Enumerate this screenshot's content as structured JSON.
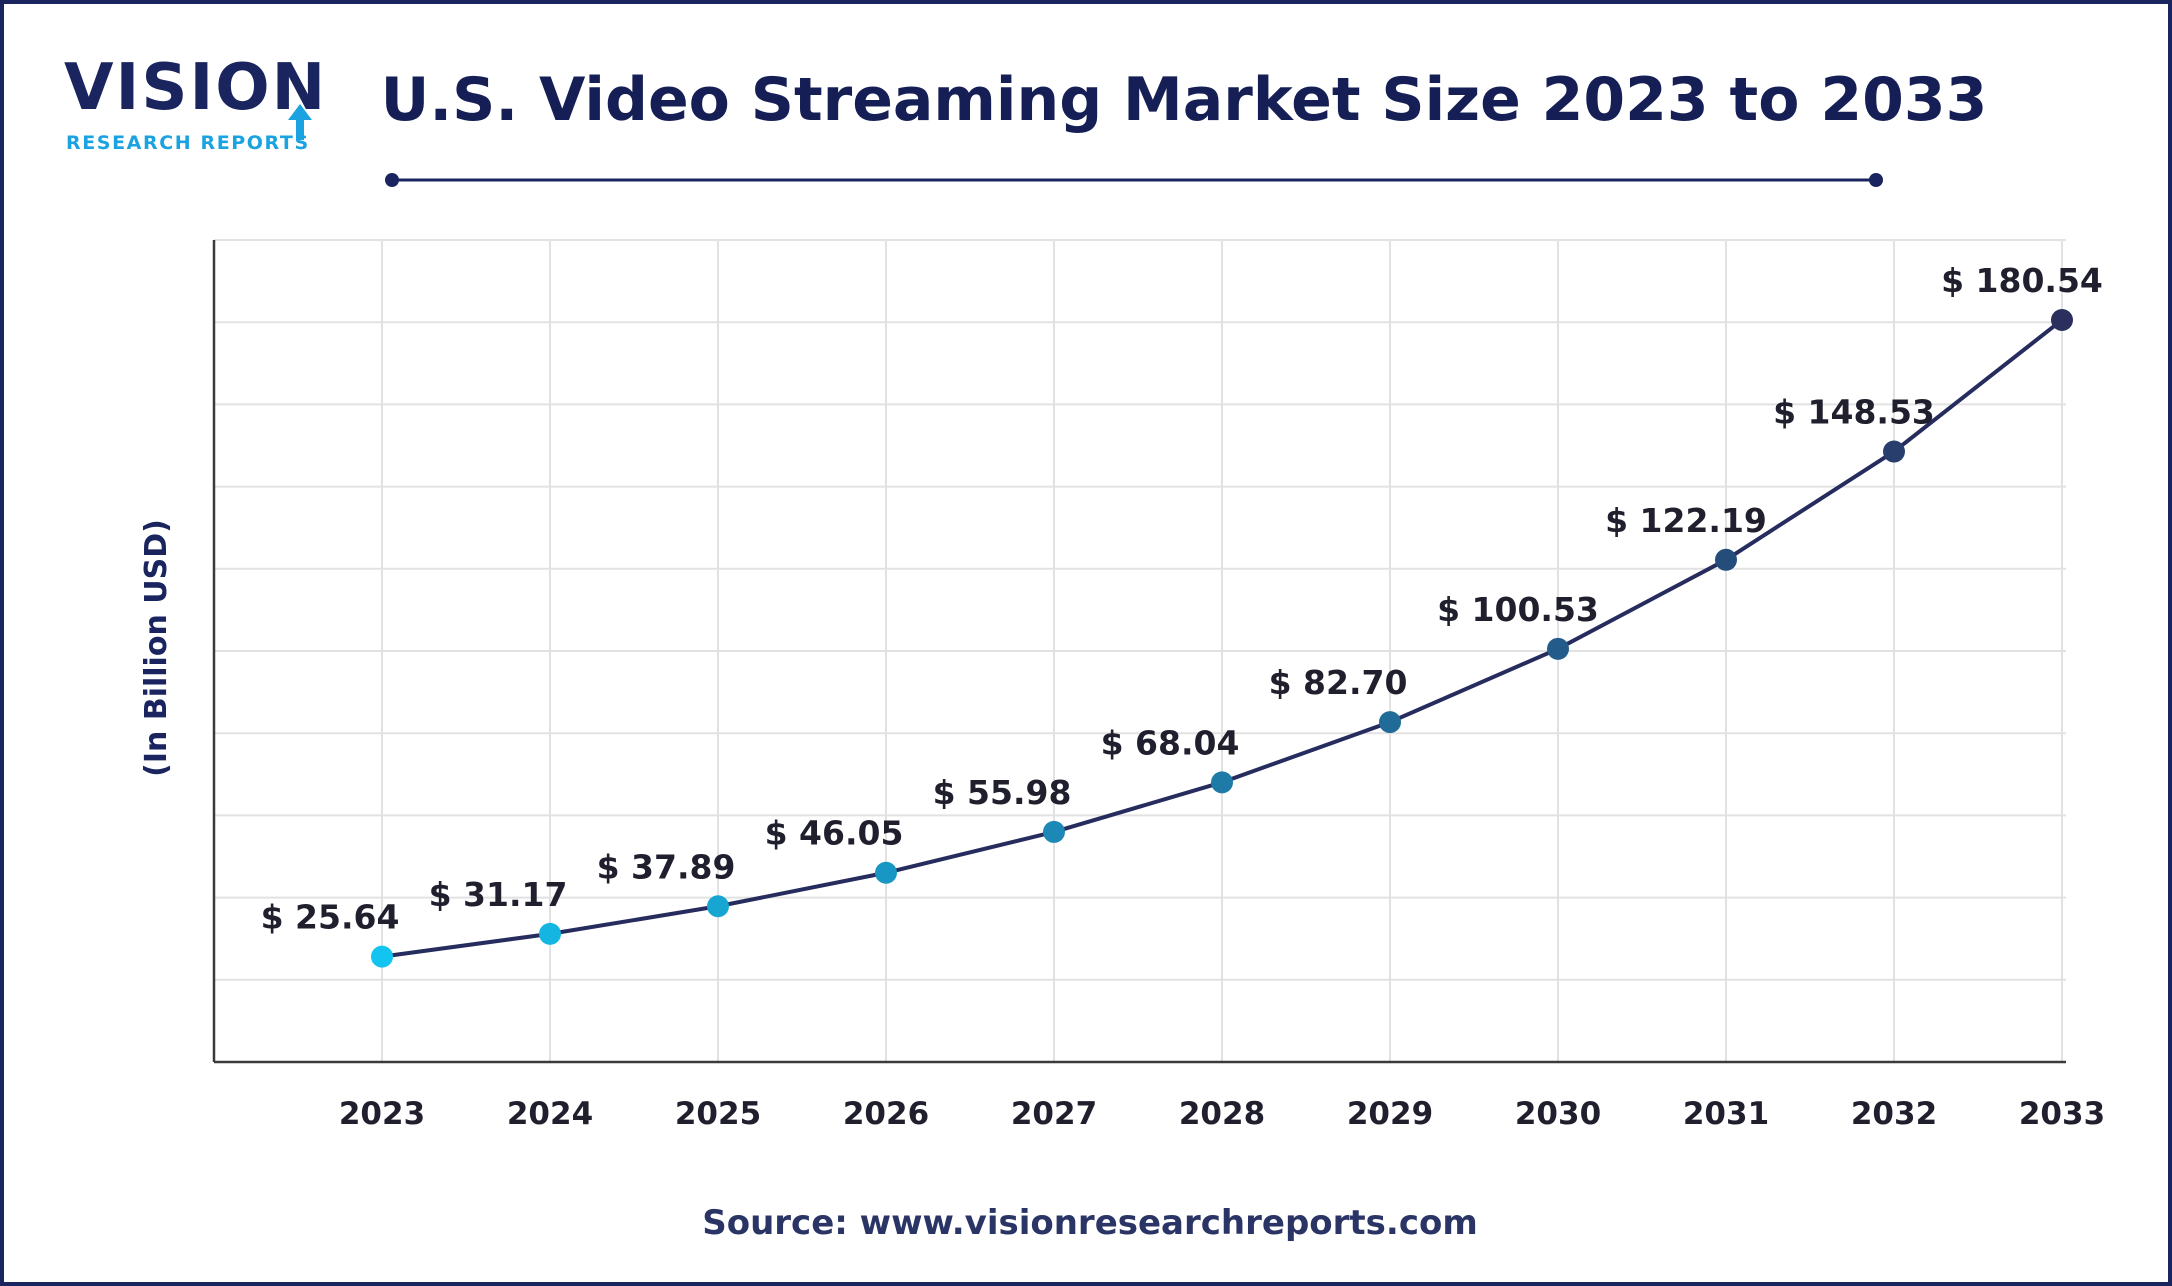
{
  "brand": {
    "logo_main": "VISION",
    "logo_sub": "RESEARCH REPORTS",
    "navy": "#1a2560",
    "cyan": "#1aa3e0"
  },
  "header": {
    "title": "U.S. Video Streaming Market Size 2023 to 2033"
  },
  "footer": {
    "source": "Source: www.visionresearchreports.com"
  },
  "chart_data": {
    "type": "line",
    "title": "U.S. Video Streaming Market Size 2023 to 2033",
    "xlabel": "",
    "ylabel": "(In Billion USD)",
    "x": [
      "2023",
      "2024",
      "2025",
      "2026",
      "2027",
      "2028",
      "2029",
      "2030",
      "2031",
      "2032",
      "2033"
    ],
    "series": [
      {
        "values": [
          25.64,
          31.17,
          37.89,
          46.05,
          55.98,
          68.04,
          82.7,
          100.53,
          122.19,
          148.53,
          180.54
        ],
        "labels": [
          "$ 25.64",
          "$ 31.17",
          "$ 37.89",
          "$ 46.05",
          "$ 55.98",
          "$ 68.04",
          "$ 82.70",
          "$ 100.53",
          "$ 122.19",
          "$ 148.53",
          "$ 180.54"
        ]
      }
    ],
    "ylim": [
      0,
      200
    ],
    "grid": true,
    "legend": "none",
    "colors": {
      "line": "#262c5e",
      "point_start": "#12c4ef",
      "point_end": "#2a2f5e",
      "grid": "#e2e2e2",
      "axis": "#3a3a3a",
      "tick_text": "#1f1f2e",
      "label_text": "#1f1f2e",
      "ylabel_text": "#1a2560"
    }
  }
}
